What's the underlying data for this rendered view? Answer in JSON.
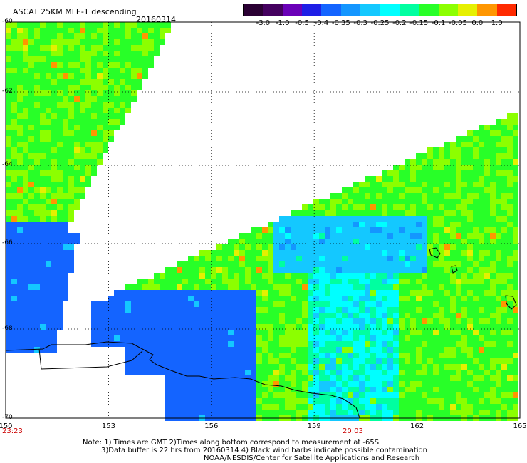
{
  "header": {
    "title": "ASCAT 25KM MLE-1 descending",
    "date": "20160314"
  },
  "colorbar": {
    "ticks": [
      "-3.0",
      "-1.0",
      "-0.5",
      "-0.4",
      "-0.35",
      "-0.3",
      "-0.25",
      "-0.2",
      "-0.15",
      "-0.1",
      "-0.05",
      "0.0",
      "1.0"
    ],
    "colors": [
      "#2a0033",
      "#44005f",
      "#6a00b8",
      "#1e1ee6",
      "#1464ff",
      "#1496ff",
      "#14c8ff",
      "#00ffff",
      "#00ffa0",
      "#28ff28",
      "#8cff00",
      "#e6f000",
      "#ff9600",
      "#ff2a00"
    ]
  },
  "axes": {
    "x_ticks": [
      "150",
      "153",
      "156",
      "159",
      "162",
      "165"
    ],
    "y_ticks": [
      "-60",
      "-62",
      "-64",
      "-66",
      "-68",
      "-70"
    ],
    "x_range": [
      150,
      165
    ],
    "y_range": [
      -60,
      -70
    ]
  },
  "times": {
    "left": "23:23",
    "right": "20:03"
  },
  "notes": {
    "line1": "Note: 1) Times are GMT 2)Times along bottom correspond to measurement at -65S",
    "line2": "3)Data buffer is 22 hrs from 20160314 4) Black wind barbs indicate possible contamination",
    "line3": "NOAA/NESDIS/Center for Satellite Applications and Research"
  }
}
